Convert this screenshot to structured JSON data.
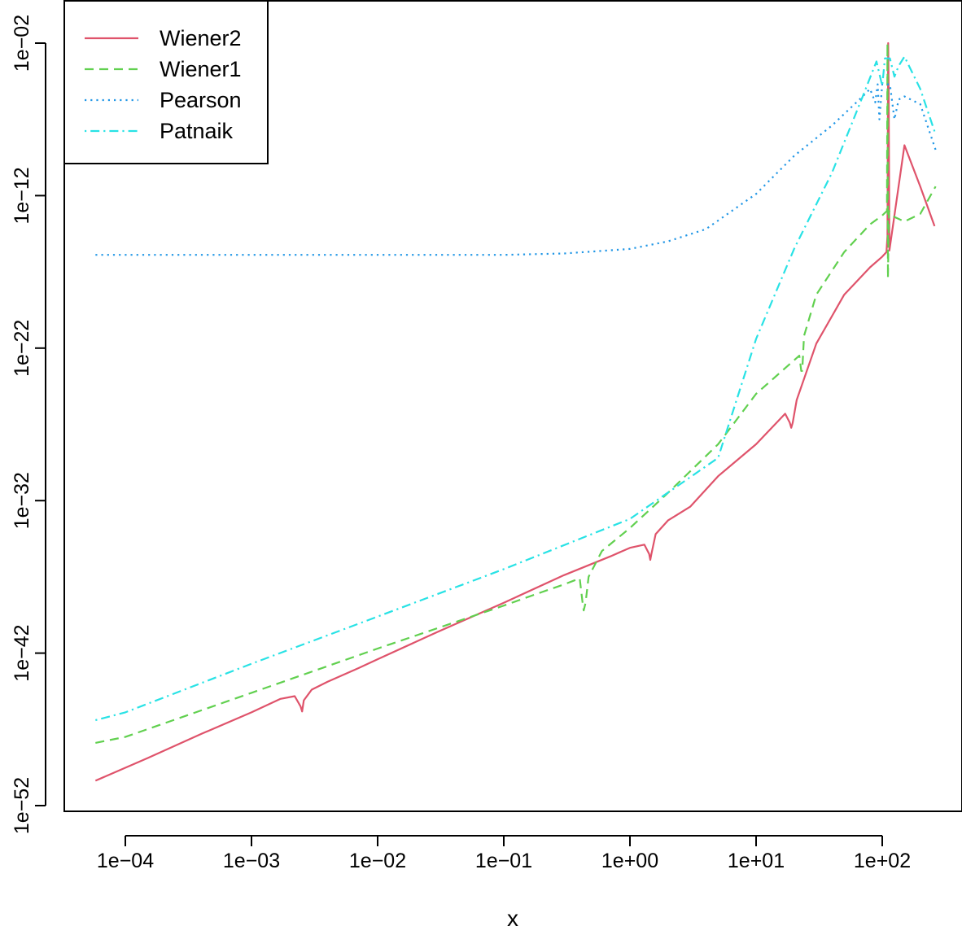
{
  "chart_data": {
    "type": "line",
    "title": "",
    "xlabel": "x",
    "ylabel": "",
    "x_scale": "log10",
    "y_scale": "log10",
    "xlim": [
      0.0001,
      300.0
    ],
    "ylim": [
      1e-52,
      0.01
    ],
    "x_ticks": [
      {
        "value": 0.0001,
        "label": "1e−04"
      },
      {
        "value": 0.001,
        "label": "1e−03"
      },
      {
        "value": 0.01,
        "label": "1e−02"
      },
      {
        "value": 0.1,
        "label": "1e−01"
      },
      {
        "value": 1.0,
        "label": "1e+00"
      },
      {
        "value": 10.0,
        "label": "1e+01"
      },
      {
        "value": 100.0,
        "label": "1e+02"
      }
    ],
    "y_ticks": [
      {
        "value": 1e-52,
        "label": "1e−52"
      },
      {
        "value": 1e-42,
        "label": "1e−42"
      },
      {
        "value": 1e-32,
        "label": "1e−32"
      },
      {
        "value": 1e-22,
        "label": "1e−22"
      },
      {
        "value": 1e-12,
        "label": "1e−12"
      },
      {
        "value": 0.01,
        "label": "1e−02"
      }
    ],
    "grid": false,
    "legend_position": "top-left",
    "series": [
      {
        "name": "Wiener2",
        "color": "#DF536B",
        "dash": "solid",
        "points": [
          [
            5.8e-05,
            4.3e-51
          ],
          [
            0.00015,
            1.3e-49
          ],
          [
            0.0004,
            5e-48
          ],
          [
            0.001,
            1.3e-46
          ],
          [
            0.0017,
            1e-45
          ],
          [
            0.0022,
            1.5e-45
          ],
          [
            0.00245,
            3.2e-46
          ],
          [
            0.00252,
            1.5e-46
          ],
          [
            0.0026,
            8e-46
          ],
          [
            0.003,
            4e-45
          ],
          [
            0.004,
            1.3e-44
          ],
          [
            0.007,
            1e-43
          ],
          [
            0.01,
            4e-43
          ],
          [
            0.03,
            2.5e-41
          ],
          [
            0.1,
            2e-39
          ],
          [
            0.3,
            1.3e-37
          ],
          [
            0.7,
            2.2e-36
          ],
          [
            1.0,
            8e-36
          ],
          [
            1.3,
            1.3e-35
          ],
          [
            1.42,
            3.2e-36
          ],
          [
            1.45,
            1.3e-36
          ],
          [
            1.48,
            3.2e-36
          ],
          [
            1.6,
            6.3e-35
          ],
          [
            2.0,
            5e-34
          ],
          [
            3.0,
            4e-33
          ],
          [
            5.0,
            4e-31
          ],
          [
            10.0,
            5e-29
          ],
          [
            17.0,
            5e-27
          ],
          [
            18.5,
            1.3e-27
          ],
          [
            19.0,
            6e-28
          ],
          [
            19.5,
            1.3e-27
          ],
          [
            21.0,
            4e-26
          ],
          [
            30.0,
            2e-22
          ],
          [
            50.0,
            3.2e-19
          ],
          [
            80.0,
            2e-17
          ],
          [
            100.0,
            1e-16
          ],
          [
            108.0,
            2e-16
          ],
          [
            110.0,
            2.2e-15
          ],
          [
            111.5,
            0.01
          ],
          [
            112.5,
            1e-05
          ],
          [
            114.0,
            2.5e-16
          ],
          [
            150.0,
            2e-09
          ],
          [
            200.0,
            4e-12
          ],
          [
            260.0,
            1e-14
          ]
        ]
      },
      {
        "name": "Wiener1",
        "color": "#61D04F",
        "dash": "dashed",
        "points": [
          [
            5.8e-05,
            1.3e-48
          ],
          [
            0.0001,
            3.2e-48
          ],
          [
            0.001,
            2.5e-45
          ],
          [
            0.01,
            2e-42
          ],
          [
            0.1,
            1.3e-39
          ],
          [
            0.2,
            1e-38
          ],
          [
            0.3,
            3.2e-38
          ],
          [
            0.4,
            8e-38
          ],
          [
            0.42,
            2.5e-39
          ],
          [
            0.43,
            6.3e-40
          ],
          [
            0.445,
            2e-39
          ],
          [
            0.47,
            1e-37
          ],
          [
            0.6,
            5e-36
          ],
          [
            1.0,
            1.6e-34
          ],
          [
            2.0,
            3.2e-32
          ],
          [
            5.0,
            5e-29
          ],
          [
            10.0,
            1e-25
          ],
          [
            20.0,
            1.6e-23
          ],
          [
            22.0,
            3.2e-23
          ],
          [
            22.8,
            3.2e-24
          ],
          [
            23.2,
            3.2e-24
          ],
          [
            24.0,
            6.3e-22
          ],
          [
            30.0,
            3.2e-19
          ],
          [
            50.0,
            2e-16
          ],
          [
            80.0,
            1.3e-14
          ],
          [
            100.0,
            5e-14
          ],
          [
            109.0,
            1e-13
          ],
          [
            110.0,
            0.01
          ],
          [
            111.0,
            4e-18
          ],
          [
            113.0,
            1e-13
          ],
          [
            125.0,
            4e-14
          ],
          [
            150.0,
            2e-14
          ],
          [
            200.0,
            6.3e-14
          ],
          [
            265.0,
            4e-12
          ]
        ]
      },
      {
        "name": "Pearson",
        "color": "#2297E6",
        "dash": "dotted",
        "points": [
          [
            5.8e-05,
            1.3e-16
          ],
          [
            0.001,
            1.3e-16
          ],
          [
            0.01,
            1.3e-16
          ],
          [
            0.1,
            1.3e-16
          ],
          [
            0.3,
            1.6e-16
          ],
          [
            1.0,
            3.2e-16
          ],
          [
            2.0,
            1e-15
          ],
          [
            4.0,
            6.3e-15
          ],
          [
            10.0,
            1.3e-12
          ],
          [
            20.0,
            4e-10
          ],
          [
            40.0,
            4e-08
          ],
          [
            70.0,
            3.2e-06
          ],
          [
            80.0,
            1e-05
          ],
          [
            88.0,
            1.3e-06
          ],
          [
            92.0,
            2e-05
          ],
          [
            95.0,
            1e-07
          ],
          [
            100.0,
            2e-05
          ],
          [
            115.0,
            2e-05
          ],
          [
            125.0,
            1e-07
          ],
          [
            135.0,
            2e-06
          ],
          [
            150.0,
            3.2e-06
          ],
          [
            200.0,
            1e-06
          ],
          [
            265.0,
            1e-09
          ]
        ]
      },
      {
        "name": "Patnaik",
        "color": "#28E2E5",
        "dash": "dotdash",
        "points": [
          [
            5.8e-05,
            4e-47
          ],
          [
            0.0001,
            1.3e-46
          ],
          [
            0.001,
            2e-43
          ],
          [
            0.01,
            2.5e-40
          ],
          [
            0.1,
            3.2e-37
          ],
          [
            1.0,
            6.3e-34
          ],
          [
            5.0,
            6.3e-30
          ],
          [
            10.0,
            4e-22
          ],
          [
            20.0,
            3.2e-16
          ],
          [
            40.0,
            3.2e-11
          ],
          [
            70.0,
            3.2e-06
          ],
          [
            90.0,
            0.00063
          ],
          [
            100.0,
            1.6e-05
          ],
          [
            105.0,
            0.001
          ],
          [
            115.0,
            0.001
          ],
          [
            125.0,
            6.3e-05
          ],
          [
            135.0,
            0.00032
          ],
          [
            150.0,
            0.0013
          ],
          [
            200.0,
            1e-05
          ],
          [
            265.0,
            1e-08
          ]
        ]
      }
    ]
  }
}
